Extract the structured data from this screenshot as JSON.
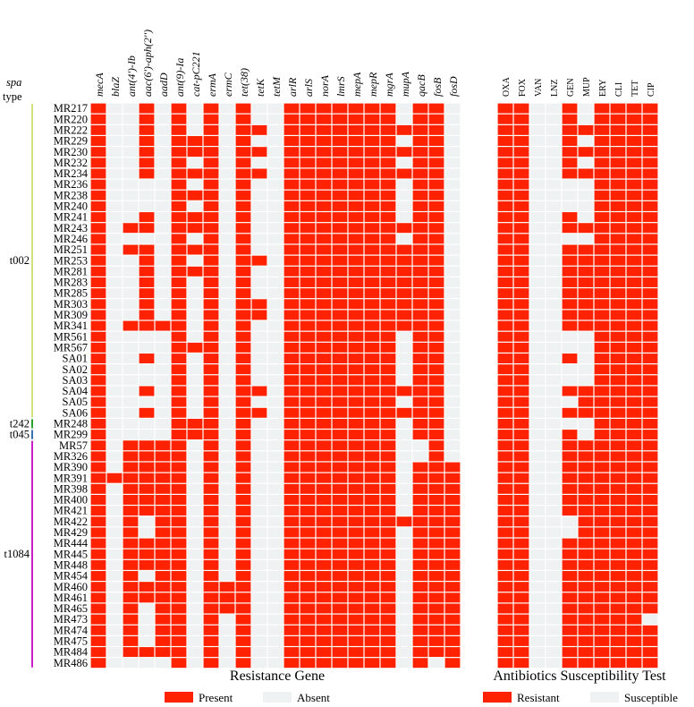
{
  "chart_data": [
    {
      "type": "heatmap",
      "title": "Resistance Gene",
      "columns": [
        "mecA",
        "blaZ",
        "ant(4')-Ib",
        "aac(6')-aph(2'')",
        "aadD",
        "ant(9)-Ia",
        "cat-pC221",
        "ermA",
        "ermC",
        "tet(38)",
        "tetK",
        "tetM",
        "arlR",
        "arlS",
        "norA",
        "lmrS",
        "mepA",
        "mepR",
        "mgrA",
        "mupA",
        "qacB",
        "fosB",
        "fosD"
      ],
      "rows": [
        "MR217",
        "MR220",
        "MR222",
        "MR229",
        "MR230",
        "MR232",
        "MR234",
        "MR236",
        "MR238",
        "MR240",
        "MR241",
        "MR243",
        "MR246",
        "MR251",
        "MR253",
        "MR281",
        "MR283",
        "MR285",
        "MR303",
        "MR309",
        "MR341",
        "MR561",
        "MR567",
        "SA01",
        "SA02",
        "SA03",
        "SA04",
        "SA05",
        "SA06",
        "MR248",
        "MR299",
        "MR57",
        "MR326",
        "MR390",
        "MR391",
        "MR398",
        "MR400",
        "MR421",
        "MR422",
        "MR429",
        "MR444",
        "MR445",
        "MR448",
        "MR454",
        "MR460",
        "MR461",
        "MR465",
        "MR473",
        "MR474",
        "MR475",
        "MR484",
        "MR486"
      ],
      "values": [
        "10010101010011111110110",
        "10010101010011111110110",
        "10010101011011111111110",
        "10010111010011111110110",
        "10010111011011111111110",
        "10010101010011111110110",
        "10010111011011111111110",
        "10000101010011111110110",
        "10000111010011111110110",
        "10000101010011111110110",
        "10010111010011111110110",
        "10110111010011111111110",
        "10000101010011111110110",
        "10110111010011111111110",
        "10010101011011111111110",
        "10010111010011111111110",
        "10010101010011111111110",
        "10010101010011111111110",
        "10010101011011111111110",
        "10010101011011111111110",
        "10111101010011111111110",
        "10000101010011111110110",
        "10000111010011111110110",
        "10010101010011111110110",
        "10000101010011111110110",
        "10000101010011111110110",
        "10010101011011111111110",
        "10000101010011111110110",
        "10010101011011111111110",
        "10000111010011111110110",
        "10000111010011111110110",
        "10111101010011111110010",
        "10111101010011111110010",
        "10111101010011111110111",
        "11111101010011111110111",
        "10111101010011111110111",
        "10111101010011111110111",
        "10111101010011111110111",
        "10101101010011111111111",
        "10101101010011111110111",
        "10111101010011111110111",
        "10111101010011111110111",
        "10111101010011111110111",
        "10101101010011111110111",
        "10111101110011111110111",
        "10111101110011111110111",
        "10101101110011111110111",
        "10101101010011111110111",
        "10101101010011111110111",
        "10101101010011111110111",
        "10111101010011111110111",
        "10000101010011111110101"
      ],
      "legend": [
        {
          "name": "Present",
          "color": "#ff2200"
        },
        {
          "name": "Absent",
          "color": "#eef2f3"
        }
      ]
    },
    {
      "type": "heatmap",
      "title": "Antibiotics Susceptibility Test",
      "columns": [
        "OXA",
        "FOX",
        "VAN",
        "LNZ",
        "GEN",
        "MUP",
        "ERY",
        "CLI",
        "TET",
        "CIP"
      ],
      "rows": [
        "MR217",
        "MR220",
        "MR222",
        "MR229",
        "MR230",
        "MR232",
        "MR234",
        "MR236",
        "MR238",
        "MR240",
        "MR241",
        "MR243",
        "MR246",
        "MR251",
        "MR253",
        "MR281",
        "MR283",
        "MR285",
        "MR303",
        "MR309",
        "MR341",
        "MR561",
        "MR567",
        "SA01",
        "SA02",
        "SA03",
        "SA04",
        "SA05",
        "SA06",
        "MR248",
        "MR299",
        "MR57",
        "MR326",
        "MR390",
        "MR391",
        "MR398",
        "MR400",
        "MR421",
        "MR422",
        "MR429",
        "MR444",
        "MR445",
        "MR448",
        "MR454",
        "MR460",
        "MR461",
        "MR465",
        "MR473",
        "MR474",
        "MR475",
        "MR484",
        "MR486"
      ],
      "values": [
        "1100101111",
        "1100101111",
        "1100111111",
        "1100101111",
        "1100111111",
        "1100101111",
        "1100111111",
        "1100001111",
        "1100001111",
        "1100001111",
        "1100101111",
        "1100111111",
        "1100001111",
        "1100111111",
        "1100111111",
        "1100111111",
        "1100111111",
        "1100111111",
        "1100111111",
        "1100111111",
        "1100111111",
        "1100001111",
        "1100001111",
        "1100101111",
        "1100001111",
        "1100001111",
        "1100111111",
        "1100011111",
        "1100111111",
        "1100001111",
        "1100101111",
        "1100111111",
        "1100111111",
        "1100111111",
        "1100111111",
        "1100111111",
        "1100111111",
        "1100111111",
        "1100011111",
        "1100011111",
        "1100111111",
        "1100111111",
        "1100111111",
        "1100111111",
        "1100111111",
        "1100111111",
        "1100111111",
        "1100111110",
        "1100111111",
        "1100111111",
        "1100111111",
        "1100111111"
      ],
      "legend": [
        {
          "name": "Resistant",
          "color": "#ff2200"
        },
        {
          "name": "Susceptible",
          "color": "#eef2f3"
        }
      ]
    }
  ],
  "spa_groups": [
    {
      "name": "t002",
      "start": 0,
      "end": 28,
      "color": "#cfe27a"
    },
    {
      "name": "t242",
      "start": 29,
      "end": 29,
      "color": "#2ca02c"
    },
    {
      "name": "t045",
      "start": 30,
      "end": 30,
      "color": "#3a6fb0"
    },
    {
      "name": "t1084",
      "start": 31,
      "end": 51,
      "color": "#c81ec8"
    }
  ],
  "spa_header": {
    "line1": "spa",
    "line2": "type"
  }
}
